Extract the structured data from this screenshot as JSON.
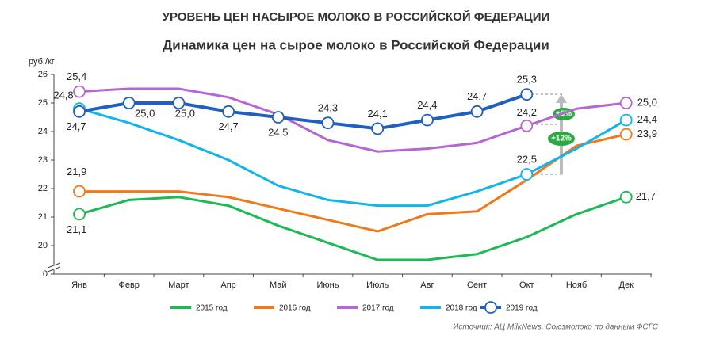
{
  "chart_data": {
    "type": "line",
    "title": "УРОВЕНЬ ЦЕН НАСЫРОЕ МОЛОКО В РОССИЙСКОЙ ФЕДЕРАЦИИ",
    "subtitle": "Динамика цен на сырое молоко в Российской Федерации",
    "y_label": "руб./кг",
    "source": "Источник: АЦ MilkNews, Союзмолоко по данным ФСГС",
    "annotations": [
      "+5%",
      "+12%"
    ],
    "categories": [
      "Янв",
      "Февр",
      "Март",
      "Апр",
      "Май",
      "Июнь",
      "Июль",
      "Авг",
      "Сент",
      "Окт",
      "Нояб",
      "Дек"
    ],
    "ylim": [
      0,
      26
    ],
    "axis_break": [
      0,
      19
    ],
    "yticks": [
      0,
      20,
      21,
      22,
      23,
      24,
      25,
      26
    ],
    "series": [
      {
        "name": "2015 год",
        "color": "#1db954",
        "values": [
          21.1,
          21.6,
          21.7,
          21.4,
          20.7,
          20.1,
          19.5,
          19.5,
          19.7,
          20.3,
          21.1,
          21.7
        ],
        "value_labels": [
          "21,1",
          null,
          null,
          null,
          null,
          null,
          null,
          null,
          null,
          null,
          null,
          "21,7"
        ]
      },
      {
        "name": "2016 год",
        "color": "#f07a1a",
        "values": [
          21.9,
          21.9,
          21.9,
          21.7,
          21.3,
          20.9,
          20.5,
          21.1,
          21.2,
          22.3,
          23.5,
          23.9
        ],
        "value_labels": [
          "21,9",
          null,
          null,
          null,
          null,
          null,
          null,
          null,
          null,
          null,
          null,
          "23,9"
        ]
      },
      {
        "name": "2017 год",
        "color": "#b666d2",
        "values": [
          25.4,
          25.5,
          25.5,
          25.2,
          24.6,
          23.7,
          23.3,
          23.4,
          23.6,
          24.2,
          24.8,
          25.0
        ],
        "value_labels": [
          "25,4",
          null,
          null,
          null,
          null,
          null,
          null,
          null,
          null,
          "24,2",
          null,
          "25,0"
        ]
      },
      {
        "name": "2018 год",
        "color": "#12b4ea",
        "values": [
          24.8,
          24.3,
          23.7,
          23.0,
          22.1,
          21.6,
          21.4,
          21.4,
          21.9,
          22.5,
          23.4,
          24.4
        ],
        "value_labels": [
          "24,8",
          null,
          null,
          null,
          null,
          null,
          null,
          null,
          null,
          "22,5",
          null,
          "24,4"
        ]
      },
      {
        "name": "2019 год",
        "color": "#1f5fbf",
        "values": [
          24.7,
          25.0,
          25.0,
          24.7,
          24.5,
          24.3,
          24.1,
          24.4,
          24.7,
          25.3,
          null,
          null
        ],
        "value_labels": [
          "24,7",
          "25,0",
          "25,0",
          "24,7",
          "24,5",
          "24,3",
          "24,1",
          "24,4",
          "24,7",
          "25,3",
          null,
          null
        ]
      }
    ]
  }
}
